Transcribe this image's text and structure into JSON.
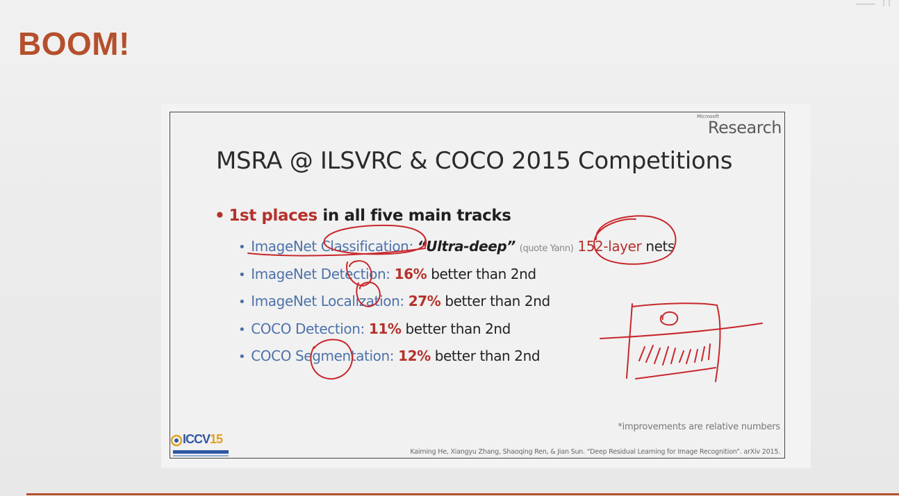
{
  "heading": "BOOM!",
  "slide": {
    "logo_small": "Microsoft",
    "logo_big": "Research",
    "title": "MSRA @ ILSVRC & COCO 2015 Competitions",
    "main_bullet": {
      "highlight": "1st places",
      "rest": " in all five main tracks"
    },
    "tracks": [
      {
        "name": "ImageNet Classification:",
        "quote": "“Ultra-deep”",
        "aside": "(quote Yann)",
        "layers": "152-layer",
        "tail": "nets"
      },
      {
        "name": "ImageNet Detection:",
        "pct": "16%",
        "tail": "better than 2nd"
      },
      {
        "name": "ImageNet Localization:",
        "pct": "27%",
        "tail": "better than 2nd"
      },
      {
        "name": "COCO Detection:",
        "pct": "11%",
        "tail": "better than 2nd"
      },
      {
        "name": "COCO Segmentation:",
        "pct": "12%",
        "tail": "better than 2nd"
      }
    ],
    "footnote": "*improvements are relative numbers",
    "citation": "Kaiming He, Xiangyu Zhang, Shaoqing Ren, & Jian Sun. “Deep Residual Learning for Image Recognition”. arXiv 2015.",
    "conference_logo": {
      "main": "ICCV",
      "year": "15"
    }
  },
  "colors": {
    "heading": "#b5502c",
    "accent_red": "#b5312c",
    "track_blue": "#4d72aa",
    "ink_red": "#c8262b"
  },
  "icons": {
    "bullet": "bullet-dot",
    "annotation": "hand-drawn-red-ink"
  }
}
